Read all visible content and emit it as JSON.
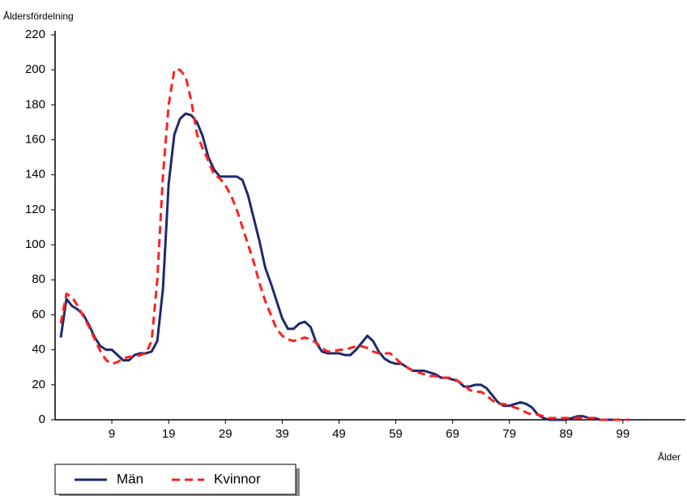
{
  "chart_data": {
    "type": "line",
    "title": "Åldersfördelning",
    "x_label": "Ålder",
    "x": [
      0,
      1,
      2,
      3,
      4,
      5,
      6,
      7,
      8,
      9,
      10,
      11,
      12,
      13,
      14,
      15,
      16,
      17,
      18,
      19,
      20,
      21,
      22,
      23,
      24,
      25,
      26,
      27,
      28,
      29,
      30,
      31,
      32,
      33,
      34,
      35,
      36,
      37,
      38,
      39,
      40,
      41,
      42,
      43,
      44,
      45,
      46,
      47,
      48,
      49,
      50,
      51,
      52,
      53,
      54,
      55,
      56,
      57,
      58,
      59,
      60,
      61,
      62,
      63,
      64,
      65,
      66,
      67,
      68,
      69,
      70,
      71,
      72,
      73,
      74,
      75,
      76,
      77,
      78,
      79,
      80,
      81,
      82,
      83,
      84,
      85,
      86,
      87,
      88,
      89,
      90,
      91,
      92,
      93,
      94,
      95,
      96,
      97,
      98,
      99,
      100
    ],
    "series": [
      {
        "name": "Män",
        "color": "#1f2a6b",
        "dash": false,
        "values": [
          47,
          69,
          65,
          63,
          60,
          54,
          47,
          42,
          40,
          40,
          37,
          34,
          34,
          37,
          38,
          38,
          39,
          45,
          75,
          135,
          163,
          172,
          175,
          174,
          170,
          162,
          150,
          143,
          139,
          139,
          139,
          139,
          137,
          128,
          115,
          102,
          87,
          78,
          68,
          58,
          52,
          52,
          55,
          56,
          53,
          44,
          39,
          38,
          38,
          38,
          37,
          37,
          40,
          44,
          48,
          45,
          39,
          35,
          33,
          32,
          32,
          30,
          28,
          28,
          28,
          27,
          26,
          24,
          24,
          23,
          22,
          19,
          19,
          20,
          20,
          18,
          14,
          10,
          8,
          8,
          9,
          10,
          9,
          7,
          3,
          1,
          0,
          0,
          0,
          0,
          1,
          2,
          2,
          1,
          1,
          0,
          0,
          0,
          0,
          null,
          null
        ]
      },
      {
        "name": "Kvinnor",
        "color": "#ff2020",
        "dash": true,
        "values": [
          55,
          72,
          70,
          65,
          59,
          53,
          46,
          39,
          34,
          32,
          33,
          35,
          36,
          36,
          37,
          38,
          45,
          80,
          140,
          180,
          200,
          200,
          196,
          182,
          163,
          155,
          148,
          140,
          138,
          134,
          128,
          120,
          110,
          100,
          90,
          78,
          68,
          60,
          52,
          48,
          46,
          45,
          46,
          47,
          46,
          44,
          41,
          39,
          39,
          40,
          40,
          41,
          42,
          42,
          41,
          39,
          38,
          38,
          38,
          35,
          32,
          30,
          28,
          27,
          26,
          25,
          25,
          24,
          24,
          24,
          22,
          20,
          17,
          16,
          16,
          14,
          11,
          9,
          9,
          8,
          7,
          6,
          4,
          3,
          3,
          2,
          1,
          1,
          1,
          1,
          1,
          1,
          1,
          1,
          1,
          0,
          0,
          0,
          0,
          0,
          0
        ]
      }
    ],
    "xlim": [
      -1,
      110
    ],
    "xticks": [
      9,
      19,
      29,
      39,
      49,
      59,
      69,
      79,
      89,
      99
    ],
    "ylim": [
      0,
      220
    ],
    "yticks": [
      0,
      20,
      40,
      60,
      80,
      100,
      120,
      140,
      160,
      180,
      200,
      220
    ],
    "grid": false
  }
}
